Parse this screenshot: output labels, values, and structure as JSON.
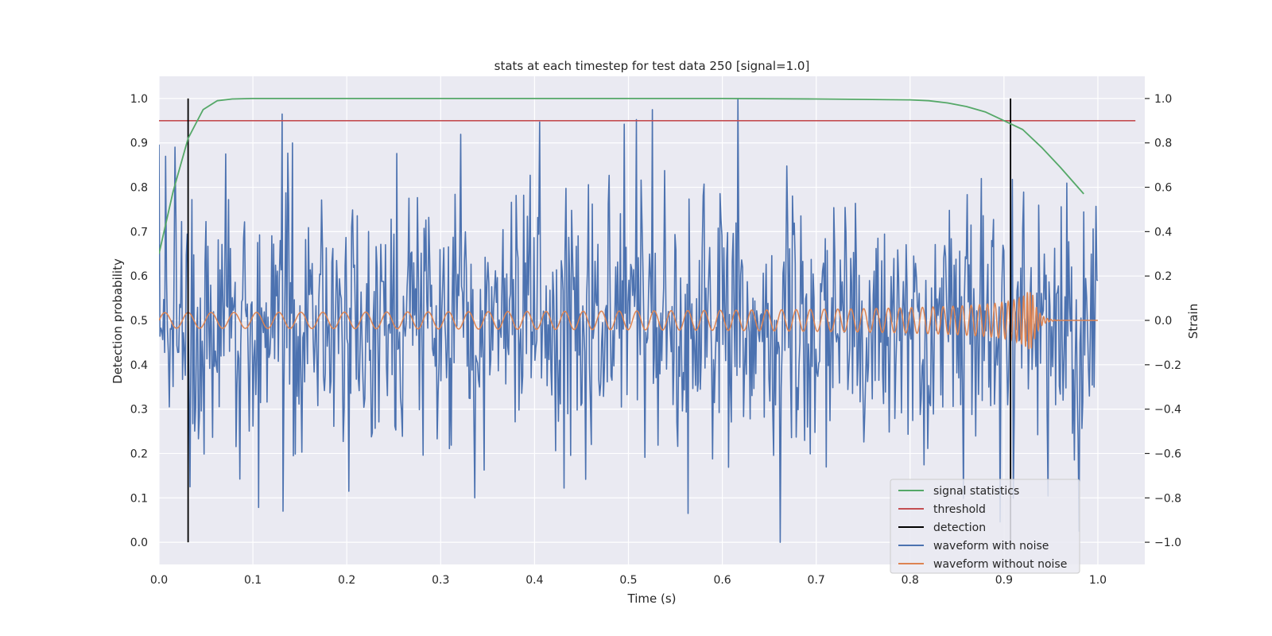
{
  "chart_data": {
    "type": "line",
    "title": "stats at each timestep for test data 250 [signal=1.0]",
    "xlabel": "Time (s)",
    "ylabel_left": "Detection probability",
    "ylabel_right": "Strain",
    "xlim": [
      0.0,
      1.05
    ],
    "ylim_left": [
      -0.05,
      1.05
    ],
    "ylim_right": [
      -1.1,
      1.1
    ],
    "x_ticks": [
      "0.0",
      "0.1",
      "0.2",
      "0.3",
      "0.4",
      "0.5",
      "0.6",
      "0.7",
      "0.8",
      "0.9",
      "1.0"
    ],
    "y_ticks_left": [
      "0.0",
      "0.1",
      "0.2",
      "0.3",
      "0.4",
      "0.5",
      "0.6",
      "0.7",
      "0.8",
      "0.9",
      "1.0"
    ],
    "y_ticks_right": [
      "−1.0",
      "−0.8",
      "−0.6",
      "−0.4",
      "−0.2",
      "0.0",
      "0.2",
      "0.4",
      "0.6",
      "0.8",
      "1.0"
    ],
    "grid": true,
    "legend_position": "lower-right",
    "threshold": {
      "y": 0.95,
      "x_range": [
        0.0,
        1.04
      ]
    },
    "detections": [
      0.031,
      0.907
    ],
    "series": [
      {
        "name": "signal statistics",
        "color": "#55a868",
        "axis": "left",
        "x": [
          0.0,
          0.015,
          0.031,
          0.047,
          0.062,
          0.078,
          0.1,
          0.2,
          0.3,
          0.4,
          0.5,
          0.6,
          0.7,
          0.75,
          0.8,
          0.82,
          0.84,
          0.86,
          0.88,
          0.9,
          0.92,
          0.94,
          0.96,
          0.985
        ],
        "y": [
          0.65,
          0.79,
          0.91,
          0.975,
          0.995,
          0.999,
          1.0,
          1.0,
          1.0,
          1.0,
          1.0,
          1.0,
          0.999,
          0.998,
          0.997,
          0.995,
          0.99,
          0.982,
          0.97,
          0.95,
          0.93,
          0.89,
          0.845,
          0.785
        ]
      },
      {
        "name": "waveform with noise",
        "color": "#4c72b0",
        "axis": "right",
        "x_range": [
          0.0,
          1.0
        ],
        "n_points": 1000,
        "amplitude_range": [
          -1.0,
          1.0
        ],
        "notable_points": [
          {
            "x": 0.007,
            "y": 0.74
          },
          {
            "x": 0.033,
            "y": -0.75
          },
          {
            "x": 0.131,
            "y": 0.93
          },
          {
            "x": 0.202,
            "y": -0.77
          },
          {
            "x": 0.526,
            "y": 0.95
          },
          {
            "x": 0.564,
            "y": -0.87
          },
          {
            "x": 0.617,
            "y": 1.0
          },
          {
            "x": 0.662,
            "y": -1.0
          },
          {
            "x": 0.98,
            "y": -0.95
          },
          {
            "x": 1.0,
            "y": 0.18
          }
        ]
      },
      {
        "name": "waveform without noise",
        "color": "#dd8452",
        "axis": "right",
        "x_range": [
          0.0,
          1.0
        ],
        "amplitude": 0.035,
        "merger_time": 0.93,
        "peak_amplitude": 0.13
      },
      {
        "name": "threshold",
        "color": "#c44e52"
      },
      {
        "name": "detection",
        "color": "#000000"
      }
    ],
    "legend": [
      "signal statistics",
      "threshold",
      "detection",
      "waveform with noise",
      "waveform without noise"
    ]
  }
}
